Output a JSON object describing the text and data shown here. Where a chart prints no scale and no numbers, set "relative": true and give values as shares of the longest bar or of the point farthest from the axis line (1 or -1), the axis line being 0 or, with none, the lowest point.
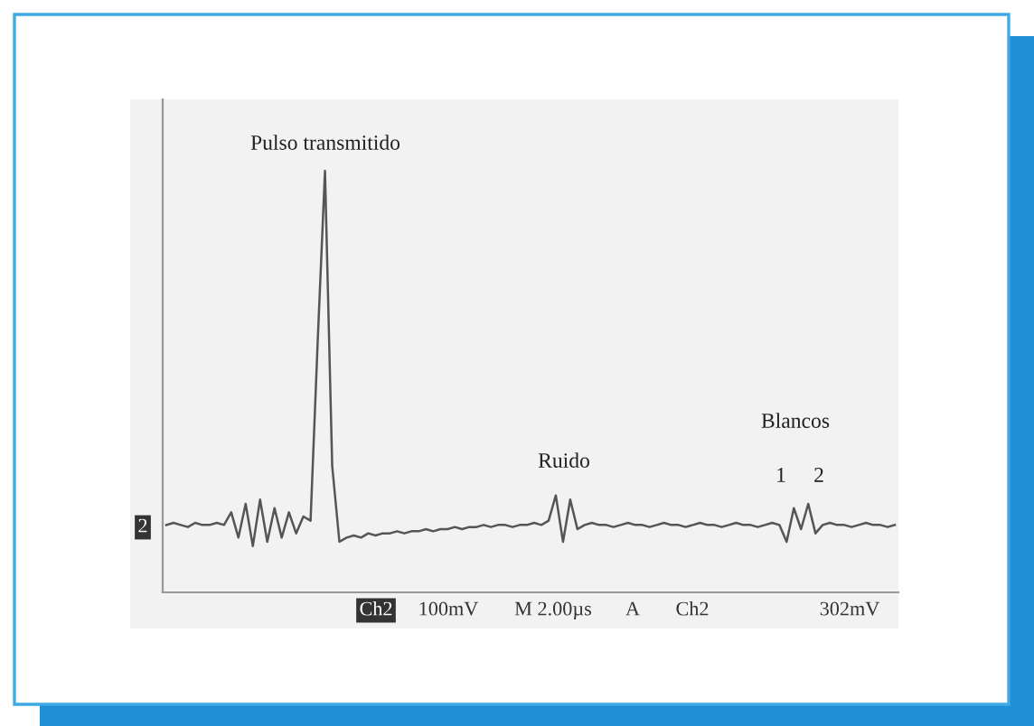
{
  "chart_data": {
    "type": "line",
    "relative": true,
    "grid": false,
    "legend": false,
    "categories": [
      null,
      null,
      null,
      null,
      null,
      null,
      null,
      null,
      null,
      null,
      null,
      null,
      null,
      null,
      null,
      null,
      null,
      null,
      null,
      null,
      null,
      null,
      null,
      null,
      null,
      null,
      null,
      null,
      null,
      null,
      null,
      null,
      null,
      null,
      null,
      null,
      null,
      null,
      null,
      null,
      null,
      null,
      null,
      null,
      null,
      null,
      null,
      null,
      null,
      null,
      null,
      null,
      null,
      null,
      null,
      null,
      null,
      null,
      null,
      null,
      null,
      null,
      null,
      null,
      null,
      null,
      null,
      null,
      null,
      null,
      null,
      null,
      null,
      null,
      null,
      null,
      null,
      null,
      null,
      null,
      null,
      null,
      null,
      null,
      null,
      null,
      null,
      null,
      null,
      null,
      null,
      null,
      null,
      null,
      null,
      null,
      null,
      null,
      null,
      null,
      null,
      null
    ],
    "series": [
      {
        "color": "#555555",
        "values": [
          0.16,
          0.165,
          0.16,
          0.155,
          0.165,
          0.16,
          0.16,
          0.165,
          0.16,
          0.19,
          0.13,
          0.21,
          0.11,
          0.22,
          0.12,
          0.2,
          0.13,
          0.19,
          0.14,
          0.18,
          0.17,
          0.6,
          1.0,
          0.3,
          0.12,
          0.13,
          0.135,
          0.13,
          0.14,
          0.135,
          0.14,
          0.14,
          0.145,
          0.14,
          0.145,
          0.145,
          0.15,
          0.145,
          0.15,
          0.15,
          0.155,
          0.15,
          0.155,
          0.155,
          0.16,
          0.155,
          0.16,
          0.16,
          0.155,
          0.16,
          0.16,
          0.165,
          0.16,
          0.17,
          0.23,
          0.12,
          0.22,
          0.15,
          0.16,
          0.165,
          0.16,
          0.16,
          0.155,
          0.16,
          0.165,
          0.16,
          0.16,
          0.155,
          0.16,
          0.165,
          0.16,
          0.16,
          0.155,
          0.16,
          0.165,
          0.16,
          0.16,
          0.155,
          0.16,
          0.165,
          0.16,
          0.16,
          0.155,
          0.16,
          0.165,
          0.16,
          0.12,
          0.2,
          0.15,
          0.21,
          0.14,
          0.16,
          0.165,
          0.16,
          0.16,
          0.155,
          0.16,
          0.165,
          0.16,
          0.16,
          0.155,
          0.16
        ]
      }
    ],
    "annotations": [
      "Pulso transmitido",
      "Ruido",
      "Blancos",
      "1",
      "2",
      "2",
      "Ch2",
      "100mV",
      "M 2.00µs",
      "A",
      "Ch2",
      "302mV"
    ]
  }
}
